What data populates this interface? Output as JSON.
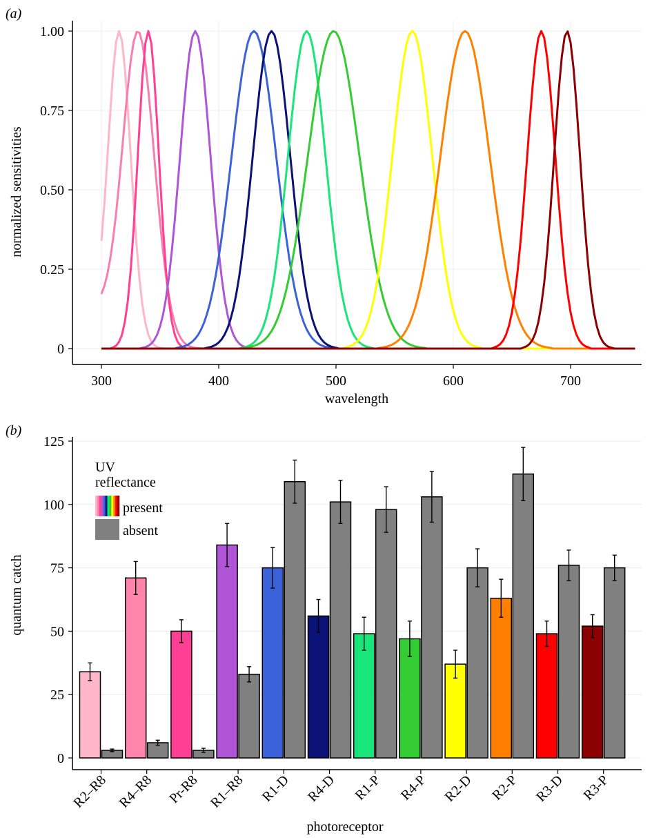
{
  "chart_data": [
    {
      "panel_label": "(a)",
      "type": "line",
      "xlabel": "wavelength",
      "ylabel": "normalized sensitivities",
      "xlim": [
        300,
        755
      ],
      "ylim": [
        0,
        1.0
      ],
      "x_ticks": [
        300,
        400,
        500,
        600,
        700
      ],
      "y_ticks": [
        0,
        0.25,
        0.5,
        0.75,
        1.0
      ],
      "y_tick_labels": [
        "0",
        "0.25",
        "0.50",
        "0.75",
        "1.00"
      ],
      "grid": true,
      "series": [
        {
          "color": "#ffb6c8",
          "peak": 315,
          "width": 10,
          "tail": true,
          "base": 0.12
        },
        {
          "color": "#f77fae",
          "peak": 331,
          "width": 14,
          "tail": true,
          "base": 0.13
        },
        {
          "color": "#ff3f94",
          "peak": 340,
          "width": 9,
          "tail": false,
          "base": 0
        },
        {
          "color": "#b055d6",
          "peak": 380,
          "width": 13,
          "tail": false,
          "base": 0
        },
        {
          "color": "#3b62d8",
          "peak": 430,
          "width": 19,
          "tail": false,
          "base": 0
        },
        {
          "color": "#0a1277",
          "peak": 445,
          "width": 16,
          "tail": false,
          "base": 0
        },
        {
          "color": "#18e57a",
          "peak": 475,
          "width": 16,
          "tail": false,
          "base": 0
        },
        {
          "color": "#33cc33",
          "peak": 498,
          "width": 22,
          "tail": false,
          "base": 0
        },
        {
          "color": "#ffff00",
          "peak": 565,
          "width": 17,
          "tail": false,
          "base": 0
        },
        {
          "color": "#ff8000",
          "peak": 610,
          "width": 21,
          "tail": false,
          "base": 0
        },
        {
          "color": "#ff0000",
          "peak": 675,
          "width": 12,
          "tail": false,
          "base": 0
        },
        {
          "color": "#8b0000",
          "peak": 697,
          "width": 11,
          "tail": false,
          "base": 0
        }
      ]
    },
    {
      "panel_label": "(b)",
      "type": "bar",
      "xlabel": "photoreceptor",
      "ylabel": "quantum catch",
      "ylim": [
        0,
        125
      ],
      "y_ticks": [
        0,
        25,
        50,
        75,
        100,
        125
      ],
      "grid": true,
      "categories": [
        "R2–R8",
        "R4–R8",
        "Pr-R8",
        "R1–R8",
        "R1-D",
        "R4-D",
        "R1-P",
        "R4-P",
        "R2-D",
        "R2-P",
        "R3-D",
        "R3-P"
      ],
      "present_colors": [
        "#ffb6c8",
        "#ff85ad",
        "#ff3f94",
        "#b055d6",
        "#3b62d8",
        "#0a1277",
        "#18e57a",
        "#33cc33",
        "#ffff00",
        "#ff8000",
        "#ff0000",
        "#8b0000"
      ],
      "absent_color": "#808080",
      "series": [
        {
          "name": "present",
          "values": [
            34,
            71,
            50,
            84,
            75,
            56,
            49,
            47,
            37,
            63,
            49,
            52
          ],
          "errors": [
            3.5,
            6.5,
            4.5,
            8.5,
            8,
            6.5,
            6.5,
            7,
            5.5,
            7.5,
            5,
            4.5
          ]
        },
        {
          "name": "absent",
          "values": [
            3,
            6,
            3,
            33,
            109,
            101,
            98,
            103,
            75,
            112,
            76,
            75
          ],
          "errors": [
            0.5,
            1,
            0.8,
            3,
            8.5,
            8.5,
            9,
            10,
            7.5,
            10.5,
            6,
            5
          ]
        }
      ],
      "legend": {
        "title": "UV\nreflectance",
        "position": "top-left",
        "entries": [
          "present",
          "absent"
        ]
      }
    }
  ],
  "panels": {
    "a": {
      "label": "(a)"
    },
    "b": {
      "label": "(b)"
    }
  },
  "legend": {
    "title_line1": "UV",
    "title_line2": "reflectance",
    "present": "present",
    "absent": "absent"
  }
}
